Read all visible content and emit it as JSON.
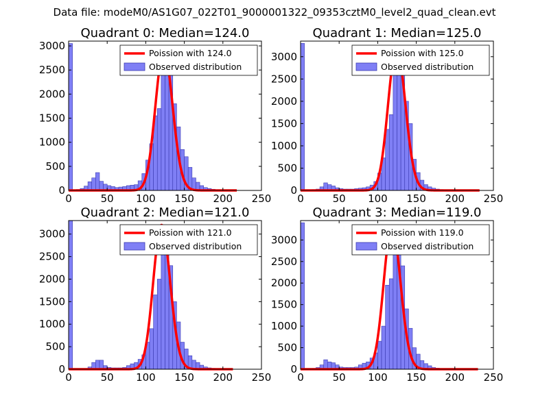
{
  "figure": {
    "suptitle": "Data file: modeM0/AS1G07_022T01_9000001322_09353cztM0_level2_quad_clean.evt"
  },
  "colors": {
    "bar_fill": "#7f7ff5",
    "bar_edge": "#3a3ab0",
    "poisson_line": "#ff0000",
    "frame": "#000000",
    "background": "#ffffff"
  },
  "chart_data": [
    {
      "type": "bar",
      "title": "Quadrant 0: Median=124.0",
      "xlim": [
        0,
        250
      ],
      "ylim": [
        0,
        3100
      ],
      "xticks": [
        0,
        50,
        100,
        150,
        200,
        250
      ],
      "yticks": [
        0,
        500,
        1000,
        1500,
        2000,
        2500,
        3000
      ],
      "legend": {
        "location": "top-right",
        "entries": [
          "Poission with 124.0",
          "Observed distribution"
        ]
      },
      "bin_width": 5,
      "bins": [
        {
          "x": 0,
          "value": 3050
        },
        {
          "x": 5,
          "value": 10
        },
        {
          "x": 10,
          "value": 20
        },
        {
          "x": 15,
          "value": 40
        },
        {
          "x": 20,
          "value": 90
        },
        {
          "x": 25,
          "value": 180
        },
        {
          "x": 30,
          "value": 260
        },
        {
          "x": 35,
          "value": 370
        },
        {
          "x": 40,
          "value": 190
        },
        {
          "x": 45,
          "value": 130
        },
        {
          "x": 50,
          "value": 100
        },
        {
          "x": 55,
          "value": 80
        },
        {
          "x": 60,
          "value": 60
        },
        {
          "x": 65,
          "value": 70
        },
        {
          "x": 70,
          "value": 80
        },
        {
          "x": 75,
          "value": 100
        },
        {
          "x": 80,
          "value": 110
        },
        {
          "x": 85,
          "value": 120
        },
        {
          "x": 90,
          "value": 200
        },
        {
          "x": 95,
          "value": 350
        },
        {
          "x": 100,
          "value": 630
        },
        {
          "x": 105,
          "value": 970
        },
        {
          "x": 110,
          "value": 1550
        },
        {
          "x": 115,
          "value": 1700
        },
        {
          "x": 120,
          "value": 2450
        },
        {
          "x": 125,
          "value": 2800
        },
        {
          "x": 130,
          "value": 2600
        },
        {
          "x": 135,
          "value": 1800
        },
        {
          "x": 140,
          "value": 1320
        },
        {
          "x": 145,
          "value": 850
        },
        {
          "x": 150,
          "value": 700
        },
        {
          "x": 155,
          "value": 480
        },
        {
          "x": 160,
          "value": 260
        },
        {
          "x": 165,
          "value": 170
        },
        {
          "x": 170,
          "value": 100
        },
        {
          "x": 175,
          "value": 60
        },
        {
          "x": 180,
          "value": 40
        },
        {
          "x": 185,
          "value": 25
        },
        {
          "x": 190,
          "value": 12
        },
        {
          "x": 195,
          "value": 8
        },
        {
          "x": 200,
          "value": 5
        },
        {
          "x": 205,
          "value": 3
        }
      ],
      "poisson": {
        "mean": 124.0,
        "peak": 2900,
        "xmin": 0,
        "xmax": 218
      }
    },
    {
      "type": "bar",
      "title": "Quadrant 1: Median=125.0",
      "xlim": [
        0,
        250
      ],
      "ylim": [
        0,
        3350
      ],
      "xticks": [
        0,
        50,
        100,
        150,
        200,
        250
      ],
      "yticks": [
        0,
        500,
        1000,
        1500,
        2000,
        2500,
        3000
      ],
      "legend": {
        "location": "top-right",
        "entries": [
          "Poission with 125.0",
          "Observed distribution"
        ]
      },
      "bin_width": 5,
      "bins": [
        {
          "x": 0,
          "value": 3300
        },
        {
          "x": 5,
          "value": 5
        },
        {
          "x": 10,
          "value": 10
        },
        {
          "x": 15,
          "value": 20
        },
        {
          "x": 20,
          "value": 30
        },
        {
          "x": 25,
          "value": 80
        },
        {
          "x": 30,
          "value": 170
        },
        {
          "x": 35,
          "value": 130
        },
        {
          "x": 40,
          "value": 100
        },
        {
          "x": 45,
          "value": 60
        },
        {
          "x": 50,
          "value": 40
        },
        {
          "x": 55,
          "value": 30
        },
        {
          "x": 60,
          "value": 30
        },
        {
          "x": 65,
          "value": 30
        },
        {
          "x": 70,
          "value": 40
        },
        {
          "x": 75,
          "value": 50
        },
        {
          "x": 80,
          "value": 60
        },
        {
          "x": 85,
          "value": 80
        },
        {
          "x": 90,
          "value": 120
        },
        {
          "x": 95,
          "value": 200
        },
        {
          "x": 100,
          "value": 390
        },
        {
          "x": 105,
          "value": 730
        },
        {
          "x": 110,
          "value": 1370
        },
        {
          "x": 115,
          "value": 1700
        },
        {
          "x": 120,
          "value": 2720
        },
        {
          "x": 125,
          "value": 3050
        },
        {
          "x": 130,
          "value": 2900
        },
        {
          "x": 135,
          "value": 2000
        },
        {
          "x": 140,
          "value": 1500
        },
        {
          "x": 145,
          "value": 700
        },
        {
          "x": 150,
          "value": 400
        },
        {
          "x": 155,
          "value": 230
        },
        {
          "x": 160,
          "value": 130
        },
        {
          "x": 165,
          "value": 80
        },
        {
          "x": 170,
          "value": 50
        },
        {
          "x": 175,
          "value": 30
        },
        {
          "x": 180,
          "value": 20
        },
        {
          "x": 185,
          "value": 15
        },
        {
          "x": 190,
          "value": 10
        },
        {
          "x": 195,
          "value": 8
        },
        {
          "x": 200,
          "value": 5
        },
        {
          "x": 205,
          "value": 3
        },
        {
          "x": 210,
          "value": 2
        },
        {
          "x": 215,
          "value": 1
        }
      ],
      "poisson": {
        "mean": 125.0,
        "peak": 3200,
        "xmin": 0,
        "xmax": 232
      }
    },
    {
      "type": "bar",
      "title": "Quadrant 2: Median=121.0",
      "xlim": [
        0,
        250
      ],
      "ylim": [
        0,
        3300
      ],
      "xticks": [
        0,
        50,
        100,
        150,
        200,
        250
      ],
      "yticks": [
        0,
        500,
        1000,
        1500,
        2000,
        2500,
        3000
      ],
      "legend": {
        "location": "top-right",
        "entries": [
          "Poission with 121.0",
          "Observed distribution"
        ]
      },
      "bin_width": 5,
      "bins": [
        {
          "x": 0,
          "value": 3300
        },
        {
          "x": 5,
          "value": 10
        },
        {
          "x": 10,
          "value": 10
        },
        {
          "x": 15,
          "value": 10
        },
        {
          "x": 20,
          "value": 10
        },
        {
          "x": 25,
          "value": 50
        },
        {
          "x": 30,
          "value": 150
        },
        {
          "x": 35,
          "value": 200
        },
        {
          "x": 40,
          "value": 200
        },
        {
          "x": 45,
          "value": 80
        },
        {
          "x": 50,
          "value": 40
        },
        {
          "x": 55,
          "value": 30
        },
        {
          "x": 60,
          "value": 30
        },
        {
          "x": 65,
          "value": 30
        },
        {
          "x": 70,
          "value": 40
        },
        {
          "x": 75,
          "value": 80
        },
        {
          "x": 80,
          "value": 120
        },
        {
          "x": 85,
          "value": 150
        },
        {
          "x": 90,
          "value": 220
        },
        {
          "x": 95,
          "value": 320
        },
        {
          "x": 100,
          "value": 600
        },
        {
          "x": 105,
          "value": 900
        },
        {
          "x": 110,
          "value": 1650
        },
        {
          "x": 115,
          "value": 2000
        },
        {
          "x": 120,
          "value": 2900
        },
        {
          "x": 125,
          "value": 3050
        },
        {
          "x": 130,
          "value": 2300
        },
        {
          "x": 135,
          "value": 1500
        },
        {
          "x": 140,
          "value": 1050
        },
        {
          "x": 145,
          "value": 600
        },
        {
          "x": 150,
          "value": 450
        },
        {
          "x": 155,
          "value": 300
        },
        {
          "x": 160,
          "value": 200
        },
        {
          "x": 165,
          "value": 150
        },
        {
          "x": 170,
          "value": 90
        },
        {
          "x": 175,
          "value": 50
        },
        {
          "x": 180,
          "value": 30
        },
        {
          "x": 185,
          "value": 20
        },
        {
          "x": 190,
          "value": 12
        },
        {
          "x": 195,
          "value": 8
        },
        {
          "x": 200,
          "value": 5
        },
        {
          "x": 205,
          "value": 3
        }
      ],
      "poisson": {
        "mean": 121.0,
        "peak": 3200,
        "xmin": 0,
        "xmax": 213
      }
    },
    {
      "type": "bar",
      "title": "Quadrant 3: Median=119.0",
      "xlim": [
        0,
        250
      ],
      "ylim": [
        0,
        3450
      ],
      "xticks": [
        0,
        50,
        100,
        150,
        200,
        250
      ],
      "yticks": [
        0,
        500,
        1000,
        1500,
        2000,
        2500,
        3000
      ],
      "legend": {
        "location": "top-right",
        "entries": [
          "Poission with 119.0",
          "Observed distribution"
        ]
      },
      "bin_width": 5,
      "bins": [
        {
          "x": 0,
          "value": 3400
        },
        {
          "x": 5,
          "value": 10
        },
        {
          "x": 10,
          "value": 10
        },
        {
          "x": 15,
          "value": 20
        },
        {
          "x": 20,
          "value": 40
        },
        {
          "x": 25,
          "value": 100
        },
        {
          "x": 30,
          "value": 220
        },
        {
          "x": 35,
          "value": 170
        },
        {
          "x": 40,
          "value": 150
        },
        {
          "x": 45,
          "value": 100
        },
        {
          "x": 50,
          "value": 50
        },
        {
          "x": 55,
          "value": 40
        },
        {
          "x": 60,
          "value": 40
        },
        {
          "x": 65,
          "value": 40
        },
        {
          "x": 70,
          "value": 50
        },
        {
          "x": 75,
          "value": 100
        },
        {
          "x": 80,
          "value": 140
        },
        {
          "x": 85,
          "value": 170
        },
        {
          "x": 90,
          "value": 260
        },
        {
          "x": 95,
          "value": 380
        },
        {
          "x": 100,
          "value": 650
        },
        {
          "x": 105,
          "value": 1000
        },
        {
          "x": 110,
          "value": 1950
        },
        {
          "x": 115,
          "value": 2100
        },
        {
          "x": 120,
          "value": 3050
        },
        {
          "x": 125,
          "value": 3150
        },
        {
          "x": 130,
          "value": 2400
        },
        {
          "x": 135,
          "value": 1400
        },
        {
          "x": 140,
          "value": 950
        },
        {
          "x": 145,
          "value": 500
        },
        {
          "x": 150,
          "value": 350
        },
        {
          "x": 155,
          "value": 200
        },
        {
          "x": 160,
          "value": 130
        },
        {
          "x": 165,
          "value": 80
        },
        {
          "x": 170,
          "value": 40
        },
        {
          "x": 175,
          "value": 25
        },
        {
          "x": 180,
          "value": 15
        },
        {
          "x": 185,
          "value": 10
        },
        {
          "x": 190,
          "value": 6
        },
        {
          "x": 195,
          "value": 4
        },
        {
          "x": 200,
          "value": 3
        },
        {
          "x": 205,
          "value": 2
        }
      ],
      "poisson": {
        "mean": 119.0,
        "peak": 3320,
        "xmin": 0,
        "xmax": 230
      }
    }
  ]
}
